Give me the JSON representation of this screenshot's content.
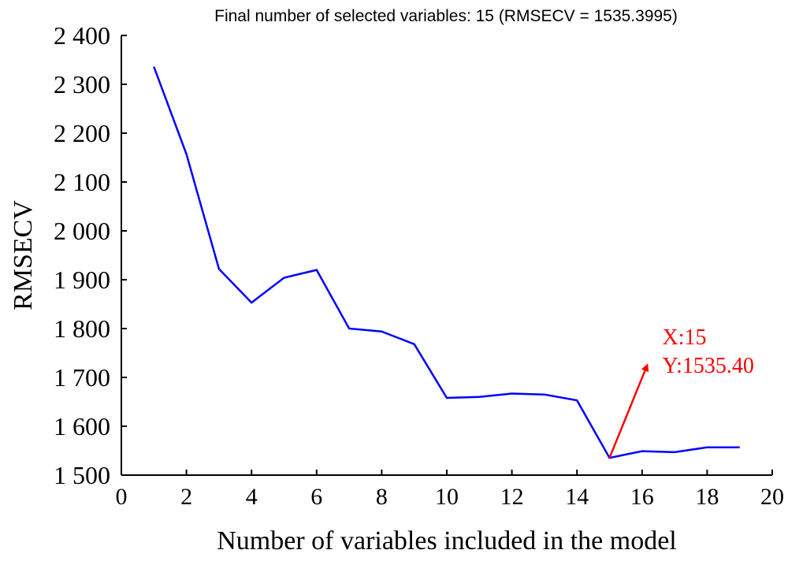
{
  "chart_data": {
    "type": "line",
    "title": "Final number of selected variables: 15  (RMSECV = 1535.3995)",
    "xlabel": "Number of variables included in the model",
    "ylabel": "RMSECV",
    "xlim": [
      0,
      20
    ],
    "ylim": [
      1500,
      2400
    ],
    "xticks": [
      0,
      2,
      4,
      6,
      8,
      10,
      12,
      14,
      16,
      18,
      20
    ],
    "yticks": [
      1500,
      1600,
      1700,
      1800,
      1900,
      2000,
      2100,
      2200,
      2300,
      2400
    ],
    "ytick_labels": [
      "1 500",
      "1 600",
      "1 700",
      "1 800",
      "1 900",
      "2 000",
      "2 100",
      "2 200",
      "2 300",
      "2 400"
    ],
    "grid": false,
    "series": [
      {
        "color": "#0000ff",
        "x": [
          1,
          2,
          3,
          4,
          5,
          6,
          7,
          8,
          9,
          10,
          11,
          12,
          13,
          14,
          15,
          16,
          17,
          18,
          19
        ],
        "y": [
          2336,
          2157,
          1922,
          1853,
          1904,
          1920,
          1800,
          1794,
          1768,
          1658,
          1660,
          1667,
          1665,
          1653,
          1535.4,
          1549,
          1547,
          1557,
          1557
        ]
      }
    ],
    "annotation": {
      "point_x": 15,
      "point_y": 1535.4,
      "line1": "X:15",
      "line2": "Y:1535.40",
      "color": "#ff0000"
    }
  }
}
